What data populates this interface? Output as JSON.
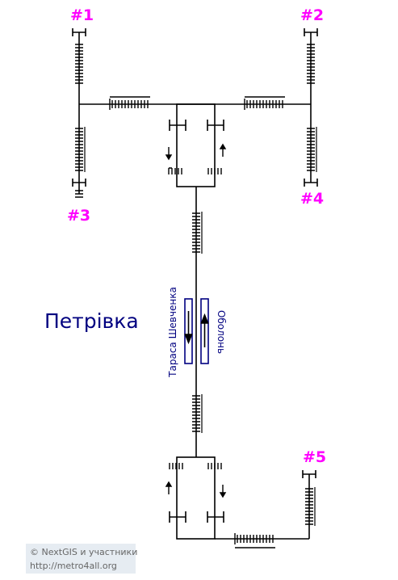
{
  "station": {
    "name": "Петрівка"
  },
  "platforms": {
    "left_track_direction": "Тараса Шевченка",
    "right_track_direction": "Оболонь"
  },
  "exits": [
    {
      "id": "exit-1",
      "label": "#1"
    },
    {
      "id": "exit-2",
      "label": "#2"
    },
    {
      "id": "exit-3",
      "label": "#3"
    },
    {
      "id": "exit-4",
      "label": "#4"
    },
    {
      "id": "exit-5",
      "label": "#5"
    }
  ],
  "attribution": {
    "copyright": "© NextGIS и участники",
    "site": "http://metro4all.org"
  },
  "colors": {
    "exit_label": "#ff00ff",
    "station_text": "#000080",
    "lines": "#000000",
    "attribution_bg": "#e6ecf2"
  }
}
